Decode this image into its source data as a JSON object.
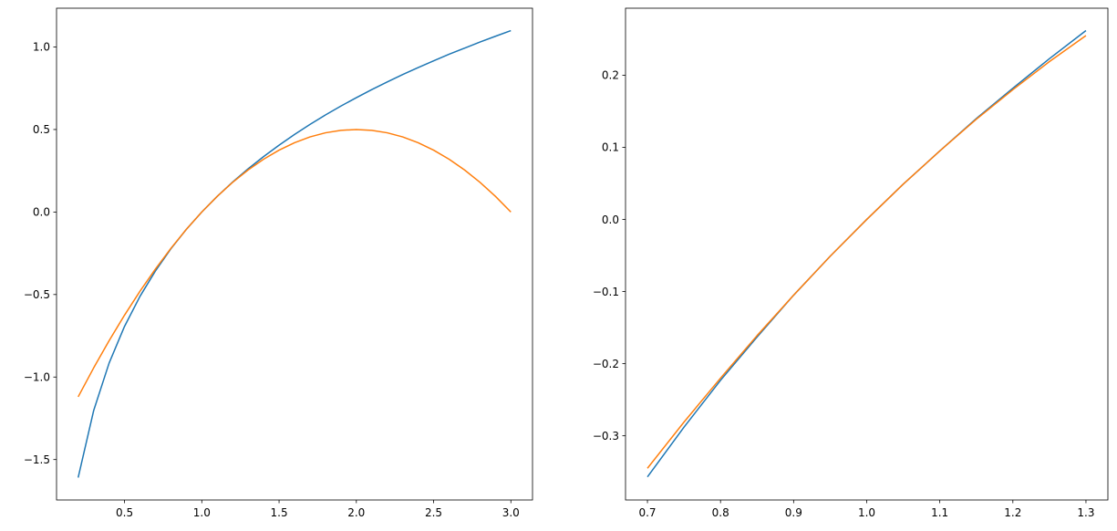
{
  "chart_data": [
    {
      "type": "line",
      "xlim": [
        0.06,
        3.14
      ],
      "ylim": [
        -1.745,
        1.235
      ],
      "xticks": [
        "0.5",
        "1.0",
        "1.5",
        "2.0",
        "2.5",
        "3.0"
      ],
      "xtick_values": [
        0.5,
        1.0,
        1.5,
        2.0,
        2.5,
        3.0
      ],
      "yticks": [
        "−1.5",
        "−1.0",
        "−0.5",
        "0.0",
        "0.5",
        "1.0"
      ],
      "ytick_values": [
        -1.5,
        -1.0,
        -0.5,
        0.0,
        0.5,
        1.0
      ],
      "grid": false,
      "x": [
        0.2,
        0.3,
        0.4,
        0.5,
        0.6,
        0.7,
        0.8,
        0.9,
        1.0,
        1.1,
        1.2,
        1.3,
        1.4,
        1.5,
        1.6,
        1.7,
        1.8,
        1.9,
        2.0,
        2.1,
        2.2,
        2.3,
        2.4,
        2.5,
        2.6,
        2.7,
        2.8,
        2.9,
        3.0
      ],
      "series": [
        {
          "color": "#1f77b4",
          "values": [
            -1.609,
            -1.204,
            -0.916,
            -0.693,
            -0.511,
            -0.357,
            -0.223,
            -0.105,
            0.0,
            0.095,
            0.182,
            0.262,
            0.336,
            0.405,
            0.47,
            0.531,
            0.588,
            0.642,
            0.693,
            0.742,
            0.788,
            0.833,
            0.875,
            0.916,
            0.956,
            0.993,
            1.03,
            1.065,
            1.099
          ]
        },
        {
          "color": "#ff7f0e",
          "values": [
            -1.12,
            -0.945,
            -0.78,
            -0.625,
            -0.48,
            -0.345,
            -0.22,
            -0.105,
            0.0,
            0.095,
            0.18,
            0.255,
            0.32,
            0.375,
            0.42,
            0.455,
            0.48,
            0.495,
            0.5,
            0.495,
            0.48,
            0.455,
            0.42,
            0.375,
            0.32,
            0.255,
            0.18,
            0.095,
            0.0
          ]
        }
      ]
    },
    {
      "type": "line",
      "xlim": [
        0.67,
        1.33
      ],
      "ylim": [
        -0.389,
        0.293
      ],
      "xticks": [
        "0.7",
        "0.8",
        "0.9",
        "1.0",
        "1.1",
        "1.2",
        "1.3"
      ],
      "xtick_values": [
        0.7,
        0.8,
        0.9,
        1.0,
        1.1,
        1.2,
        1.3
      ],
      "yticks": [
        "−0.3",
        "−0.2",
        "−0.1",
        "0.0",
        "0.1",
        "0.2"
      ],
      "ytick_values": [
        -0.3,
        -0.2,
        -0.1,
        0.0,
        0.1,
        0.2
      ],
      "grid": false,
      "x": [
        0.7,
        0.75,
        0.8,
        0.85,
        0.9,
        0.95,
        1.0,
        1.05,
        1.1,
        1.15,
        1.2,
        1.25,
        1.3
      ],
      "series": [
        {
          "color": "#1f77b4",
          "values": [
            -0.357,
            -0.288,
            -0.223,
            -0.163,
            -0.105,
            -0.051,
            0.0,
            0.049,
            0.095,
            0.14,
            0.182,
            0.223,
            0.262
          ]
        },
        {
          "color": "#ff7f0e",
          "values": [
            -0.345,
            -0.281,
            -0.22,
            -0.161,
            -0.105,
            -0.051,
            0.0,
            0.049,
            0.095,
            0.139,
            0.18,
            0.219,
            0.255
          ]
        }
      ]
    }
  ]
}
